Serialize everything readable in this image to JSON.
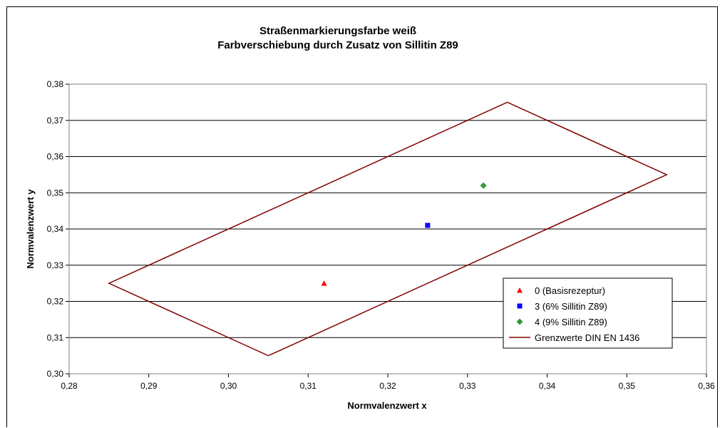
{
  "chart_data": {
    "type": "scatter",
    "title": "Straßenmarkierungsfarbe weiß",
    "subtitle": "Farbverschiebung durch Zusatz von Sillitin Z89",
    "xlabel": "Normvalenzwert x",
    "ylabel": "Normvalenzwert y",
    "xlim": [
      0.28,
      0.36
    ],
    "ylim": [
      0.3,
      0.38
    ],
    "x_ticks": [
      "0,28",
      "0,29",
      "0,30",
      "0,31",
      "0,32",
      "0,33",
      "0,34",
      "0,35",
      "0,36"
    ],
    "y_ticks": [
      "0,30",
      "0,31",
      "0,32",
      "0,33",
      "0,34",
      "0,35",
      "0,36",
      "0,37",
      "0,38"
    ],
    "grid": "horizontal",
    "legend_position": "bottom-right",
    "series": [
      {
        "name": "0 (Basisrezeptur)",
        "marker": "triangle",
        "color": "#ff0000",
        "points": [
          {
            "x": 0.312,
            "y": 0.325
          }
        ]
      },
      {
        "name": "3 (6% Sillitin Z89)",
        "marker": "square",
        "color": "#0000ff",
        "points": [
          {
            "x": 0.325,
            "y": 0.341
          }
        ]
      },
      {
        "name": "4 (9% Sillitin Z89)",
        "marker": "diamond",
        "color": "#339933",
        "points": [
          {
            "x": 0.332,
            "y": 0.352
          }
        ]
      },
      {
        "name": "Grenzwerte DIN EN 1436",
        "marker": "line",
        "color": "#800000",
        "points": [
          {
            "x": 0.305,
            "y": 0.305
          },
          {
            "x": 0.355,
            "y": 0.355
          },
          {
            "x": 0.335,
            "y": 0.375
          },
          {
            "x": 0.285,
            "y": 0.325
          },
          {
            "x": 0.305,
            "y": 0.305
          }
        ]
      }
    ]
  }
}
